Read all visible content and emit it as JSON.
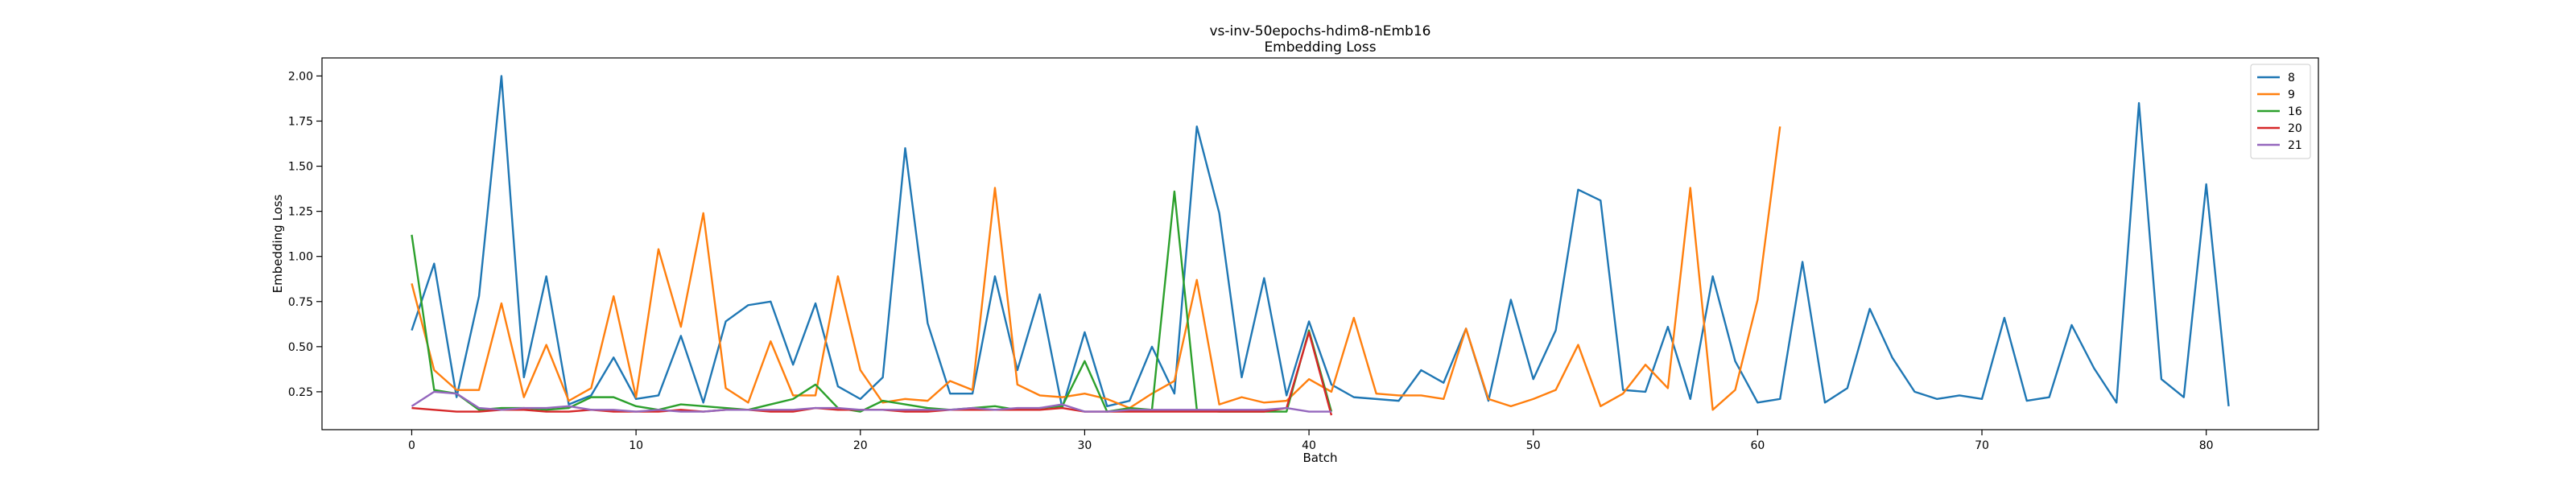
{
  "chart_data": {
    "type": "line",
    "title": "vs-inv-50epochs-hdim8-nEmb16",
    "subtitle": "Embedding Loss",
    "xlabel": "Batch",
    "ylabel": "Embedding Loss",
    "xlim": [
      -4,
      85
    ],
    "ylim": [
      0.04,
      2.1
    ],
    "xticks": [
      0,
      10,
      20,
      30,
      40,
      50,
      60,
      70,
      80
    ],
    "yticks": [
      0.25,
      0.5,
      0.75,
      1.0,
      1.25,
      1.5,
      1.75,
      2.0
    ],
    "ytick_labels": [
      "0.25",
      "0.50",
      "0.75",
      "1.00",
      "1.25",
      "1.50",
      "1.75",
      "2.00"
    ],
    "grid": false,
    "legend_position": "top-right",
    "series": [
      {
        "name": "8",
        "color": "#1f77b4",
        "values": [
          0.59,
          0.96,
          0.22,
          0.78,
          2.0,
          0.33,
          0.89,
          0.18,
          0.23,
          0.44,
          0.21,
          0.23,
          0.56,
          0.19,
          0.64,
          0.73,
          0.75,
          0.4,
          0.74,
          0.28,
          0.21,
          0.33,
          1.6,
          0.63,
          0.24,
          0.24,
          0.89,
          0.37,
          0.79,
          0.16,
          0.58,
          0.17,
          0.2,
          0.5,
          0.24,
          1.72,
          1.24,
          0.33,
          0.88,
          0.23,
          0.64,
          0.29,
          0.22,
          0.21,
          0.2,
          0.37,
          0.3,
          0.6,
          0.2,
          0.76,
          0.32,
          0.59,
          1.37,
          1.31,
          0.26,
          0.25,
          0.61,
          0.21,
          0.89,
          0.42,
          0.19,
          0.21,
          0.97,
          0.19,
          0.27,
          0.71,
          0.44,
          0.25,
          0.21,
          0.23,
          0.21,
          0.66,
          0.2,
          0.22,
          0.62,
          0.38,
          0.19,
          1.85,
          0.32,
          0.22,
          1.4,
          0.17
        ]
      },
      {
        "name": "9",
        "color": "#ff7f0e",
        "values": [
          0.85,
          0.37,
          0.26,
          0.26,
          0.74,
          0.22,
          0.51,
          0.2,
          0.27,
          0.78,
          0.22,
          1.04,
          0.61,
          1.24,
          0.27,
          0.19,
          0.53,
          0.23,
          0.23,
          0.89,
          0.37,
          0.19,
          0.21,
          0.2,
          0.31,
          0.26,
          1.38,
          0.29,
          0.23,
          0.22,
          0.24,
          0.21,
          0.16,
          0.24,
          0.31,
          0.87,
          0.18,
          0.22,
          0.19,
          0.2,
          0.32,
          0.25,
          0.66,
          0.24,
          0.23,
          0.23,
          0.21,
          0.6,
          0.21,
          0.17,
          0.21,
          0.26,
          0.51,
          0.17,
          0.24,
          0.4,
          0.27,
          1.38,
          0.15,
          0.26,
          0.76,
          1.72
        ]
      },
      {
        "name": "16",
        "color": "#2ca02c",
        "values": [
          1.12,
          0.26,
          0.24,
          0.15,
          0.16,
          0.16,
          0.15,
          0.16,
          0.22,
          0.22,
          0.17,
          0.15,
          0.18,
          0.17,
          0.16,
          0.15,
          0.18,
          0.21,
          0.29,
          0.16,
          0.14,
          0.2,
          0.18,
          0.16,
          0.15,
          0.16,
          0.17,
          0.15,
          0.16,
          0.17,
          0.42,
          0.14,
          0.16,
          0.15,
          1.36,
          0.15,
          0.14,
          0.14,
          0.14,
          0.14,
          0.59,
          0.14
        ]
      },
      {
        "name": "20",
        "color": "#d62728",
        "values": [
          0.16,
          0.15,
          0.14,
          0.14,
          0.15,
          0.15,
          0.14,
          0.14,
          0.15,
          0.14,
          0.14,
          0.14,
          0.15,
          0.14,
          0.15,
          0.15,
          0.14,
          0.14,
          0.16,
          0.15,
          0.15,
          0.15,
          0.14,
          0.14,
          0.15,
          0.15,
          0.15,
          0.15,
          0.15,
          0.16,
          0.14,
          0.14,
          0.14,
          0.14,
          0.14,
          0.14,
          0.14,
          0.14,
          0.14,
          0.16,
          0.58,
          0.12
        ]
      },
      {
        "name": "21",
        "color": "#9467bd",
        "values": [
          0.17,
          0.25,
          0.24,
          0.16,
          0.15,
          0.16,
          0.16,
          0.17,
          0.15,
          0.15,
          0.14,
          0.15,
          0.14,
          0.14,
          0.15,
          0.15,
          0.15,
          0.15,
          0.16,
          0.16,
          0.15,
          0.15,
          0.15,
          0.15,
          0.15,
          0.16,
          0.15,
          0.16,
          0.16,
          0.18,
          0.14,
          0.14,
          0.15,
          0.15,
          0.15,
          0.15,
          0.15,
          0.15,
          0.15,
          0.16,
          0.14,
          0.14
        ]
      }
    ]
  }
}
